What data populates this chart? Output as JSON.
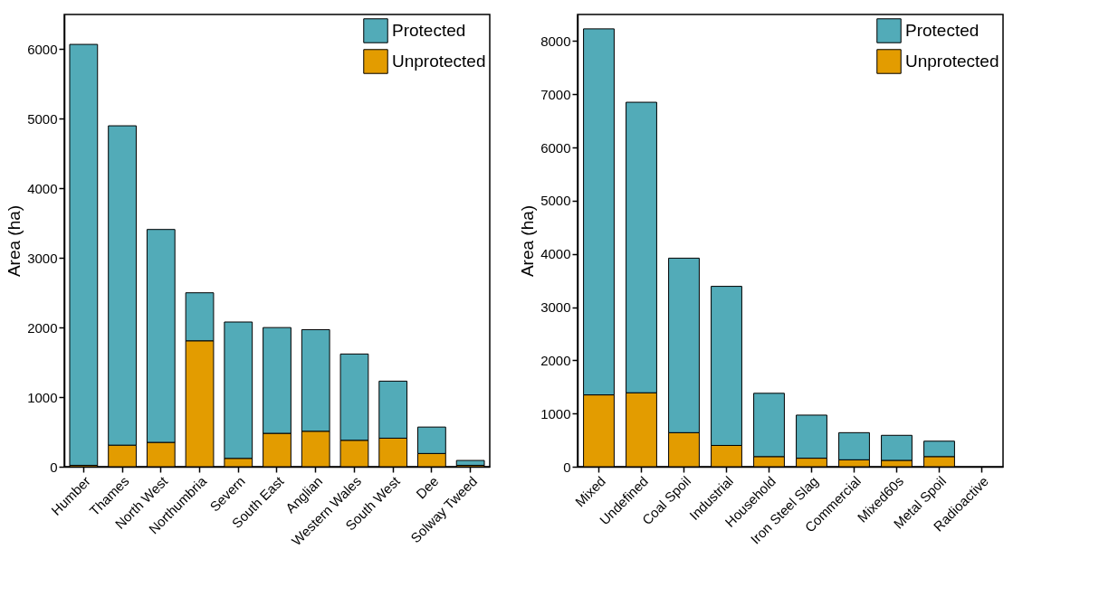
{
  "chart_data": [
    {
      "type": "bar",
      "stacked": true,
      "ylabel": "Area (ha)",
      "legend": "top right",
      "categories": [
        "Humber",
        "Thames",
        "North West",
        "Northumbria",
        "Severn",
        "South East",
        "Anglian",
        "Western Wales",
        "South West",
        "Dee",
        "Solway Tweed"
      ],
      "series": [
        {
          "name": "Unprotected",
          "color": "#e39c00",
          "values": [
            20,
            310,
            350,
            1810,
            120,
            480,
            510,
            380,
            410,
            190,
            20
          ]
        },
        {
          "name": "Protected",
          "color": "#52abb8",
          "values": [
            6050,
            4590,
            3060,
            690,
            1960,
            1520,
            1460,
            1240,
            820,
            380,
            70
          ]
        }
      ],
      "ylim": [
        0,
        6500
      ],
      "yticks": [
        0,
        1000,
        2000,
        3000,
        4000,
        5000,
        6000
      ]
    },
    {
      "type": "bar",
      "stacked": true,
      "ylabel": "Area (ha)",
      "legend": "top right",
      "categories": [
        "Mixed",
        "Undefined",
        "Coal Spoil",
        "Industrial",
        "Household",
        "Iron Steel Slag",
        "Commercial",
        "Mixed60s",
        "Metal Spoil",
        "Radioactive"
      ],
      "series": [
        {
          "name": "Unprotected",
          "color": "#e39c00",
          "values": [
            1350,
            1390,
            640,
            400,
            190,
            160,
            130,
            120,
            190,
            null
          ]
        },
        {
          "name": "Protected",
          "color": "#52abb8",
          "values": [
            6880,
            5460,
            3280,
            2990,
            1190,
            810,
            510,
            470,
            290,
            null
          ]
        }
      ],
      "ylim": [
        0,
        8500
      ],
      "yticks": [
        0,
        1000,
        2000,
        3000,
        4000,
        5000,
        6000,
        7000,
        8000
      ]
    }
  ]
}
